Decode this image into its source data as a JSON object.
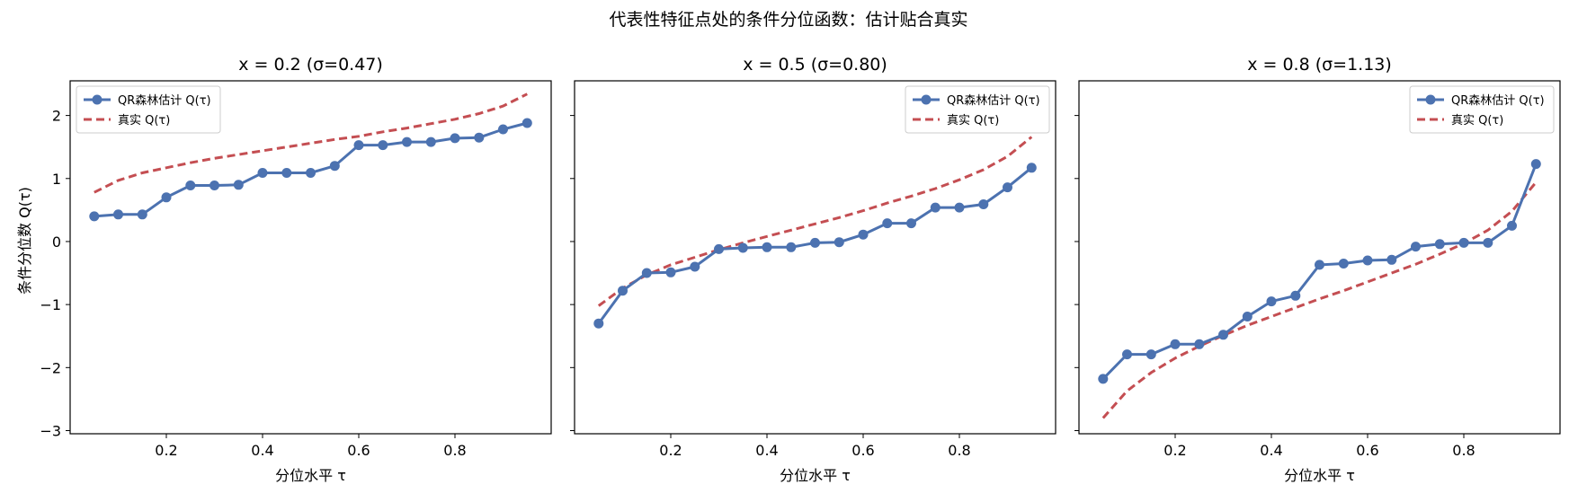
{
  "figure": {
    "suptitle": "代表性特征点处的条件分位函数：估计贴合真实",
    "ylabel": "条件分位数 Q(τ)",
    "xlabel": "分位水平 τ",
    "legend_estimate": "QR森林估计 Q(τ)",
    "legend_true": "真实 Q(τ)",
    "colors": {
      "estimate": "#4c72b0",
      "true": "#c44e52"
    }
  },
  "chart_data": [
    {
      "type": "line",
      "title": "x = 0.2 (σ=0.47)",
      "xlabel": "分位水平 τ",
      "ylabel": "条件分位数 Q(τ)",
      "xlim": [
        0.0,
        1.0
      ],
      "ylim": [
        -3.05,
        2.55
      ],
      "xticks": [
        0.2,
        0.4,
        0.6,
        0.8
      ],
      "yticks": [
        -3,
        -2,
        -1,
        0,
        1,
        2
      ],
      "legend": "upper left",
      "grid": false,
      "x": [
        0.05,
        0.1,
        0.15,
        0.2,
        0.25,
        0.3,
        0.35,
        0.4,
        0.45,
        0.5,
        0.55,
        0.6,
        0.65,
        0.7,
        0.75,
        0.8,
        0.85,
        0.9,
        0.95
      ],
      "series": [
        {
          "name": "QR森林估计 Q(τ)",
          "style": "solid-marker",
          "values": [
            0.4,
            0.43,
            0.43,
            0.7,
            0.89,
            0.89,
            0.9,
            1.09,
            1.09,
            1.09,
            1.2,
            1.53,
            1.53,
            1.58,
            1.58,
            1.64,
            1.65,
            1.78,
            1.88
          ]
        },
        {
          "name": "真实 Q(τ)",
          "style": "dashed",
          "values": [
            0.78,
            0.97,
            1.09,
            1.17,
            1.25,
            1.32,
            1.38,
            1.44,
            1.5,
            1.56,
            1.62,
            1.67,
            1.74,
            1.8,
            1.87,
            1.94,
            2.03,
            2.15,
            2.34
          ]
        }
      ]
    },
    {
      "type": "line",
      "title": "x = 0.5 (σ=0.80)",
      "xlabel": "分位水平 τ",
      "ylabel": "",
      "xlim": [
        0.0,
        1.0
      ],
      "ylim": [
        -3.05,
        2.55
      ],
      "xticks": [
        0.2,
        0.4,
        0.6,
        0.8
      ],
      "yticks": [
        -3,
        -2,
        -1,
        0,
        1,
        2
      ],
      "legend": "upper right",
      "grid": false,
      "x": [
        0.05,
        0.1,
        0.15,
        0.2,
        0.25,
        0.3,
        0.35,
        0.4,
        0.45,
        0.5,
        0.55,
        0.6,
        0.65,
        0.7,
        0.75,
        0.8,
        0.85,
        0.9,
        0.95
      ],
      "series": [
        {
          "name": "QR森林估计 Q(τ)",
          "style": "solid-marker",
          "values": [
            -1.3,
            -0.78,
            -0.5,
            -0.49,
            -0.4,
            -0.12,
            -0.1,
            -0.09,
            -0.09,
            -0.02,
            -0.01,
            0.11,
            0.29,
            0.29,
            0.54,
            0.54,
            0.59,
            0.86,
            1.17
          ]
        },
        {
          "name": "真实 Q(τ)",
          "style": "dashed",
          "values": [
            -1.02,
            -0.74,
            -0.53,
            -0.37,
            -0.25,
            -0.13,
            -0.02,
            0.08,
            0.18,
            0.28,
            0.38,
            0.49,
            0.61,
            0.72,
            0.84,
            0.98,
            1.14,
            1.35,
            1.66
          ]
        }
      ]
    },
    {
      "type": "line",
      "title": "x = 0.8 (σ=1.13)",
      "xlabel": "分位水平 τ",
      "ylabel": "",
      "xlim": [
        0.0,
        1.0
      ],
      "ylim": [
        -3.05,
        2.55
      ],
      "xticks": [
        0.2,
        0.4,
        0.6,
        0.8
      ],
      "yticks": [
        -3,
        -2,
        -1,
        0,
        1,
        2
      ],
      "legend": "upper right",
      "grid": false,
      "x": [
        0.05,
        0.1,
        0.15,
        0.2,
        0.25,
        0.3,
        0.35,
        0.4,
        0.45,
        0.5,
        0.55,
        0.6,
        0.65,
        0.7,
        0.75,
        0.8,
        0.85,
        0.9,
        0.95
      ],
      "series": [
        {
          "name": "QR森林估计 Q(τ)",
          "style": "solid-marker",
          "values": [
            -2.18,
            -1.79,
            -1.79,
            -1.63,
            -1.63,
            -1.48,
            -1.19,
            -0.95,
            -0.86,
            -0.37,
            -0.35,
            -0.3,
            -0.29,
            -0.08,
            -0.04,
            -0.02,
            -0.02,
            0.25,
            1.23
          ]
        },
        {
          "name": "真实 Q(τ)",
          "style": "dashed",
          "values": [
            -2.8,
            -2.37,
            -2.08,
            -1.85,
            -1.66,
            -1.49,
            -1.33,
            -1.19,
            -1.05,
            -0.91,
            -0.78,
            -0.64,
            -0.5,
            -0.36,
            -0.2,
            -0.03,
            0.18,
            0.48,
            0.94
          ]
        }
      ]
    }
  ]
}
